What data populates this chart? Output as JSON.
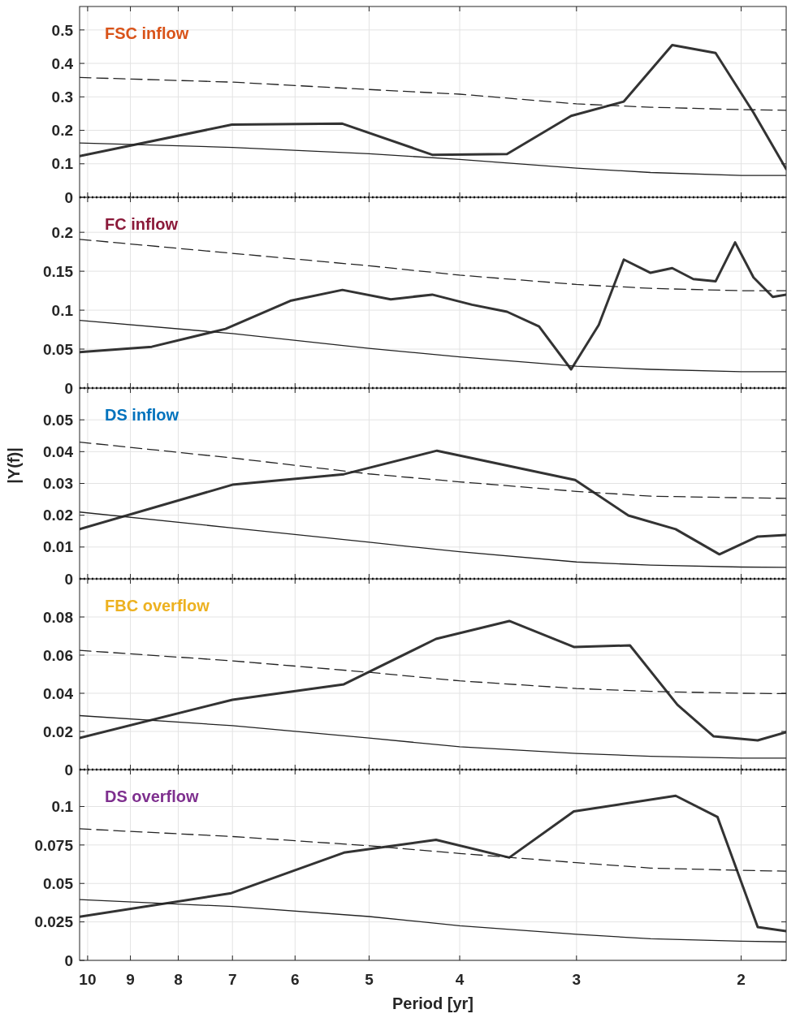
{
  "chart_data": [
    {
      "type": "line",
      "title": "FSC inflow",
      "log": "x",
      "xlim": [
        10.2,
        1.79
      ],
      "xticks": [
        10,
        9,
        8,
        7,
        6,
        5,
        4,
        3,
        2
      ],
      "ylim": [
        0,
        0.57
      ],
      "yticks": [
        0,
        0.1,
        0.2,
        0.3,
        0.4,
        0.5
      ],
      "grid": true,
      "tick_labels": "y",
      "marker": "none",
      "ref_lines": [
        {
          "axis": "y",
          "value": 0,
          "color": "#000000",
          "line_style": "dotted"
        }
      ],
      "series": [
        {
          "color": "#333333",
          "line_style": "solid",
          "x": [
            10.2,
            7.01,
            5.34,
            4.28,
            3.56,
            3.04,
            2.67,
            2.37,
            2.13,
            1.94,
            1.79
          ],
          "values": [
            0.123,
            0.217,
            0.22,
            0.127,
            0.129,
            0.243,
            0.286,
            0.455,
            0.431,
            0.253,
            0.084
          ]
        },
        {
          "color": "#222222",
          "line_style": "dashed",
          "x": [
            10.2,
            7,
            5,
            4,
            3,
            2.5,
            2,
            1.79
          ],
          "values": [
            0.358,
            0.344,
            0.322,
            0.308,
            0.279,
            0.269,
            0.262,
            0.26
          ]
        },
        {
          "color": "#222222",
          "line_style": "solid",
          "x": [
            10.2,
            7,
            5,
            4,
            3,
            2.5,
            2,
            1.79
          ],
          "values": [
            0.162,
            0.149,
            0.13,
            0.113,
            0.087,
            0.074,
            0.065,
            0.065
          ]
        }
      ]
    },
    {
      "type": "line",
      "title": "FC inflow",
      "log": "x",
      "xlim": [
        10.2,
        1.79
      ],
      "xticks": [
        10,
        9,
        8,
        7,
        6,
        5,
        4,
        3,
        2
      ],
      "ylim": [
        0,
        0.245
      ],
      "yticks": [
        0,
        0.05,
        0.1,
        0.15,
        0.2
      ],
      "grid": true,
      "tick_labels": "y",
      "marker": "none",
      "ref_lines": [
        {
          "axis": "y",
          "value": 0,
          "color": "#000000",
          "line_style": "dotted"
        }
      ],
      "series": [
        {
          "color": "#333333",
          "line_style": "solid",
          "x": [
            10.2,
            8.54,
            7.12,
            6.07,
            5.34,
            4.74,
            4.28,
            3.88,
            3.56,
            3.29,
            3.04,
            2.84,
            2.67,
            2.5,
            2.37,
            2.25,
            2.13,
            2.03,
            1.94,
            1.85,
            1.79
          ],
          "values": [
            0.046,
            0.053,
            0.076,
            0.112,
            0.126,
            0.114,
            0.12,
            0.107,
            0.098,
            0.079,
            0.024,
            0.081,
            0.165,
            0.148,
            0.154,
            0.14,
            0.137,
            0.187,
            0.142,
            0.117,
            0.12
          ]
        },
        {
          "color": "#222222",
          "line_style": "dashed",
          "x": [
            10.2,
            7,
            5,
            4,
            3,
            2.5,
            2,
            1.79
          ],
          "values": [
            0.191,
            0.173,
            0.157,
            0.145,
            0.133,
            0.128,
            0.125,
            0.125
          ]
        },
        {
          "color": "#222222",
          "line_style": "solid",
          "x": [
            10.2,
            7,
            5,
            4,
            3,
            2.5,
            2,
            1.79
          ],
          "values": [
            0.087,
            0.07,
            0.051,
            0.04,
            0.028,
            0.024,
            0.021,
            0.021
          ]
        }
      ]
    },
    {
      "type": "line",
      "title": "DS inflow",
      "ylabel": "|Y(f)|",
      "log": "x",
      "xlim": [
        10.2,
        1.79
      ],
      "xticks": [
        10,
        9,
        8,
        7,
        6,
        5,
        4,
        3,
        2
      ],
      "ylim": [
        0,
        0.06
      ],
      "yticks": [
        0,
        0.01,
        0.02,
        0.03,
        0.04,
        0.05
      ],
      "grid": true,
      "tick_labels": "y",
      "marker": "none",
      "ref_lines": [
        {
          "axis": "y",
          "value": 0,
          "color": "#000000",
          "line_style": "dotted"
        }
      ],
      "series": [
        {
          "color": "#333333",
          "line_style": "solid",
          "x": [
            10.2,
            7,
            5.32,
            4.23,
            3.01,
            2.64,
            2.35,
            2.11,
            1.92,
            1.79
          ],
          "values": [
            0.0156,
            0.0296,
            0.0329,
            0.0403,
            0.0311,
            0.0199,
            0.0156,
            0.0077,
            0.0133,
            0.0138
          ]
        },
        {
          "color": "#222222",
          "line_style": "dashed",
          "x": [
            10.2,
            7,
            5,
            4,
            3,
            2.5,
            2,
            1.79
          ],
          "values": [
            0.043,
            0.038,
            0.033,
            0.0305,
            0.0275,
            0.026,
            0.0255,
            0.0253
          ]
        },
        {
          "color": "#222222",
          "line_style": "solid",
          "x": [
            10.2,
            7,
            5,
            4,
            3,
            2.5,
            2,
            1.79
          ],
          "values": [
            0.021,
            0.016,
            0.0115,
            0.0085,
            0.0053,
            0.0043,
            0.0037,
            0.0036
          ]
        }
      ]
    },
    {
      "type": "line",
      "title": "FBC overflow",
      "log": "x",
      "xlim": [
        10.2,
        1.79
      ],
      "xticks": [
        10,
        9,
        8,
        7,
        6,
        5,
        4,
        3,
        2
      ],
      "ylim": [
        0,
        0.1
      ],
      "yticks": [
        0,
        0.02,
        0.04,
        0.06,
        0.08
      ],
      "grid": true,
      "tick_labels": "y",
      "marker": "none",
      "ref_lines": [
        {
          "axis": "y",
          "value": 0,
          "color": "#000000",
          "line_style": "dotted"
        }
      ],
      "series": [
        {
          "color": "#333333",
          "line_style": "solid",
          "x": [
            10.2,
            7,
            5.32,
            4.24,
            3.54,
            3.02,
            2.63,
            2.34,
            2.14,
            1.92,
            1.79
          ],
          "values": [
            0.0166,
            0.0366,
            0.0447,
            0.0685,
            0.0779,
            0.0643,
            0.0651,
            0.034,
            0.0174,
            0.0153,
            0.0196
          ]
        },
        {
          "color": "#222222",
          "line_style": "dashed",
          "x": [
            10.2,
            7,
            5,
            4,
            3,
            2.5,
            2,
            1.79
          ],
          "values": [
            0.0625,
            0.057,
            0.051,
            0.0465,
            0.0425,
            0.041,
            0.04,
            0.0398
          ]
        },
        {
          "color": "#222222",
          "line_style": "solid",
          "x": [
            10.2,
            7,
            5,
            4,
            3,
            2.5,
            2,
            1.79
          ],
          "values": [
            0.0283,
            0.023,
            0.0165,
            0.012,
            0.0085,
            0.007,
            0.006,
            0.006
          ]
        }
      ]
    },
    {
      "type": "line",
      "title": "DS overflow",
      "xlabel": "Period [yr]",
      "log": "x",
      "xlim": [
        10.2,
        1.79
      ],
      "xticks": [
        10,
        9,
        8,
        7,
        6,
        5,
        4,
        3,
        2
      ],
      "ylim": [
        0,
        0.124
      ],
      "yticks": [
        0,
        0.025,
        0.05,
        0.075,
        0.1
      ],
      "grid": true,
      "marker": "none",
      "series": [
        {
          "color": "#333333",
          "line_style": "solid",
          "x": [
            10.2,
            7.02,
            5.32,
            4.24,
            3.54,
            3.02,
            2.35,
            2.12,
            1.92,
            1.79
          ],
          "values": [
            0.0284,
            0.0437,
            0.07,
            0.0784,
            0.0668,
            0.0968,
            0.107,
            0.0932,
            0.0216,
            0.019
          ]
        },
        {
          "color": "#222222",
          "line_style": "dashed",
          "x": [
            10.2,
            7,
            5,
            4,
            3,
            2.5,
            2,
            1.79
          ],
          "values": [
            0.0855,
            0.0805,
            0.0745,
            0.0695,
            0.0635,
            0.06,
            0.0585,
            0.058
          ]
        },
        {
          "color": "#222222",
          "line_style": "solid",
          "x": [
            10.2,
            7,
            5,
            4,
            3,
            2.5,
            2,
            1.79
          ],
          "values": [
            0.0395,
            0.035,
            0.0285,
            0.0225,
            0.017,
            0.014,
            0.0125,
            0.012
          ]
        }
      ]
    }
  ]
}
